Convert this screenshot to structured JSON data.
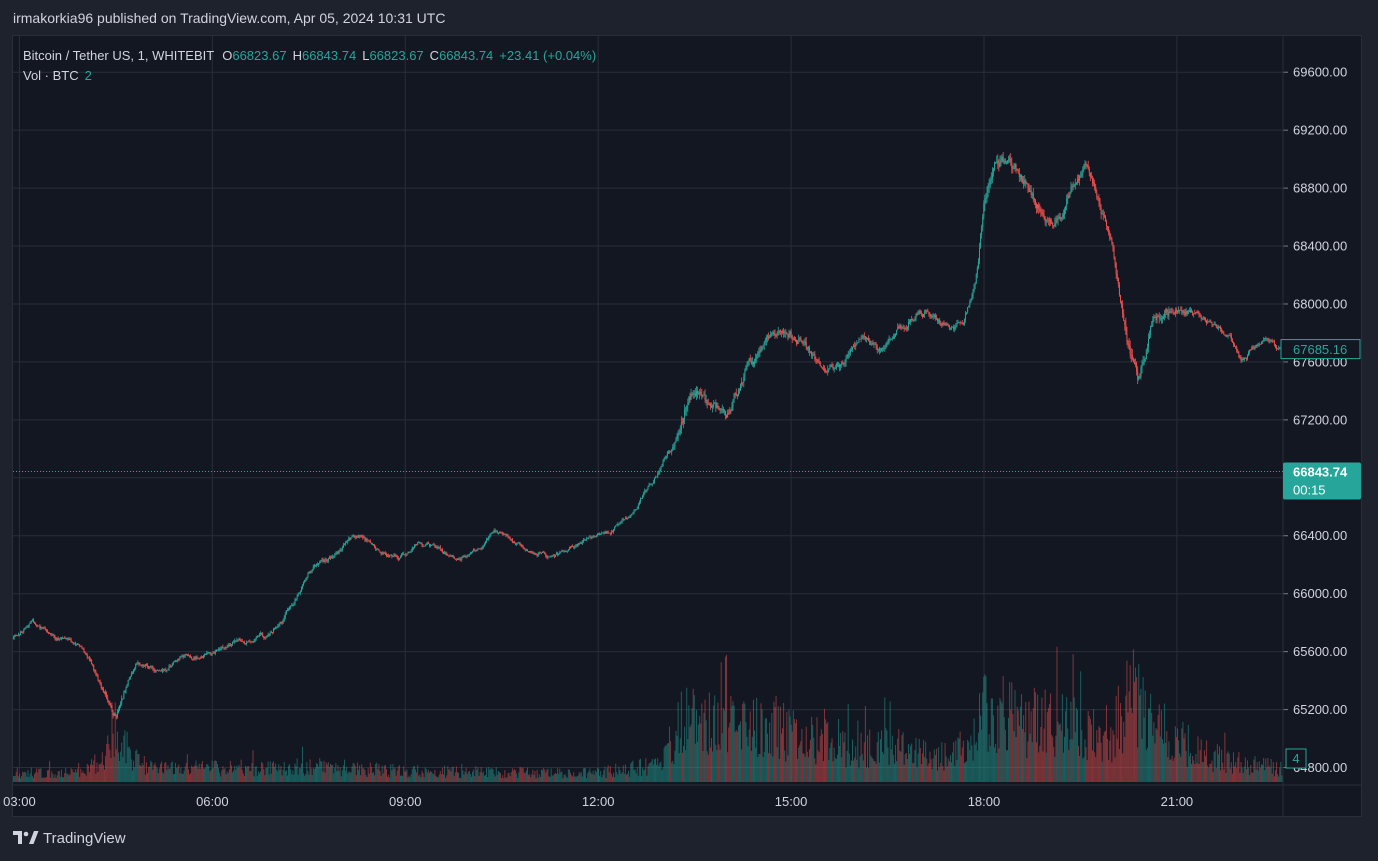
{
  "header": {
    "text": "irmakorkia96 published on TradingView.com, Apr 05, 2024 10:31 UTC"
  },
  "legend": {
    "symbol": "Bitcoin / Tether US, 1, WHITEBIT",
    "open_label": "O",
    "open": "66823.67",
    "high_label": "H",
    "high": "66843.74",
    "low_label": "L",
    "low": "66823.67",
    "close_label": "C",
    "close": "66843.74",
    "change": "+23.41 (+0.04%)",
    "vol_label": "Vol · BTC",
    "vol_value": "2"
  },
  "footer": {
    "brand": "TradingView"
  },
  "colors": {
    "background": "#131722",
    "grid": "#2a2e39",
    "up": "#26a69a",
    "down": "#ef5350",
    "text": "#d1d4dc"
  },
  "chart_data": {
    "type": "candlestick",
    "symbol": "Bitcoin / Tether US",
    "interval": "1",
    "exchange": "WHITEBIT",
    "y_axis": {
      "ticks": [
        "69600.00",
        "69200.00",
        "68800.00",
        "68400.00",
        "68000.00",
        "67600.00",
        "67200.00",
        "66800.00",
        "66400.00",
        "66000.00",
        "65600.00",
        "65200.00",
        "64800.00"
      ],
      "range": [
        64700,
        69850
      ]
    },
    "x_axis": {
      "ticks": [
        "03:00",
        "06:00",
        "09:00",
        "12:00",
        "15:00",
        "18:00",
        "21:00"
      ],
      "range_hours": [
        2.9,
        22.65
      ]
    },
    "price_path": {
      "times": [
        2.9,
        3.2,
        3.5,
        3.8,
        4.1,
        4.3,
        4.5,
        4.8,
        5.2,
        5.5,
        5.8,
        6.1,
        6.4,
        6.8,
        7.1,
        7.3,
        7.6,
        7.9,
        8.1,
        8.3,
        8.6,
        8.9,
        9.2,
        9.5,
        9.8,
        10.1,
        10.4,
        10.7,
        11.0,
        11.3,
        11.6,
        11.9,
        12.2,
        12.5,
        12.8,
        13.0,
        13.2,
        13.4,
        13.6,
        13.8,
        14.0,
        14.3,
        14.6,
        14.9,
        15.2,
        15.5,
        15.8,
        16.1,
        16.4,
        16.7,
        17.0,
        17.3,
        17.5,
        17.7,
        17.9,
        18.0,
        18.2,
        18.4,
        18.6,
        18.8,
        19.0,
        19.2,
        19.4,
        19.6,
        19.8,
        20.0,
        20.2,
        20.4,
        20.6,
        20.8,
        21.0,
        21.2,
        21.4,
        21.6,
        21.8,
        22.0,
        22.2,
        22.4,
        22.65
      ],
      "values": [
        65700,
        65800,
        65720,
        65660,
        65560,
        65300,
        65150,
        65520,
        65480,
        65550,
        65560,
        65620,
        65680,
        65700,
        65820,
        65980,
        66200,
        66250,
        66350,
        66400,
        66300,
        66250,
        66350,
        66300,
        66250,
        66300,
        66420,
        66350,
        66300,
        66250,
        66330,
        66380,
        66420,
        66550,
        66750,
        66900,
        67050,
        67350,
        67400,
        67300,
        67200,
        67550,
        67700,
        67850,
        67700,
        67550,
        67600,
        67750,
        67650,
        67850,
        67950,
        67900,
        67800,
        67900,
        68250,
        68700,
        69050,
        68950,
        68900,
        68750,
        68550,
        68600,
        68850,
        68950,
        68700,
        68400,
        67800,
        67500,
        67850,
        67950,
        67950,
        67950,
        67900,
        67850,
        67800,
        67600,
        67700,
        67750,
        67685
      ]
    },
    "volume_path": {
      "times": [
        2.9,
        4.0,
        4.5,
        5.0,
        7.0,
        7.5,
        9.0,
        11.0,
        12.0,
        13.0,
        13.3,
        13.8,
        14.3,
        15.0,
        15.5,
        16.0,
        16.5,
        17.0,
        17.5,
        17.9,
        18.0,
        18.4,
        18.8,
        19.5,
        20.0,
        20.3,
        20.6,
        21.0,
        21.5,
        22.0,
        22.65
      ],
      "values": [
        1.0,
        1.0,
        4.0,
        1.5,
        1.6,
        1.8,
        1.2,
        1.0,
        1.0,
        2.0,
        7.0,
        6.5,
        6.0,
        5.5,
        4.5,
        3.8,
        3.8,
        3.5,
        3.0,
        5.2,
        9.0,
        7.0,
        6.5,
        6.0,
        5.5,
        9.5,
        6.5,
        4.5,
        3.0,
        2.0,
        1.5
      ]
    },
    "price_axis_labels": {
      "last_price": "66843.74",
      "countdown": "00:15",
      "marker_price": "67685.16",
      "volume_value": "4"
    }
  }
}
